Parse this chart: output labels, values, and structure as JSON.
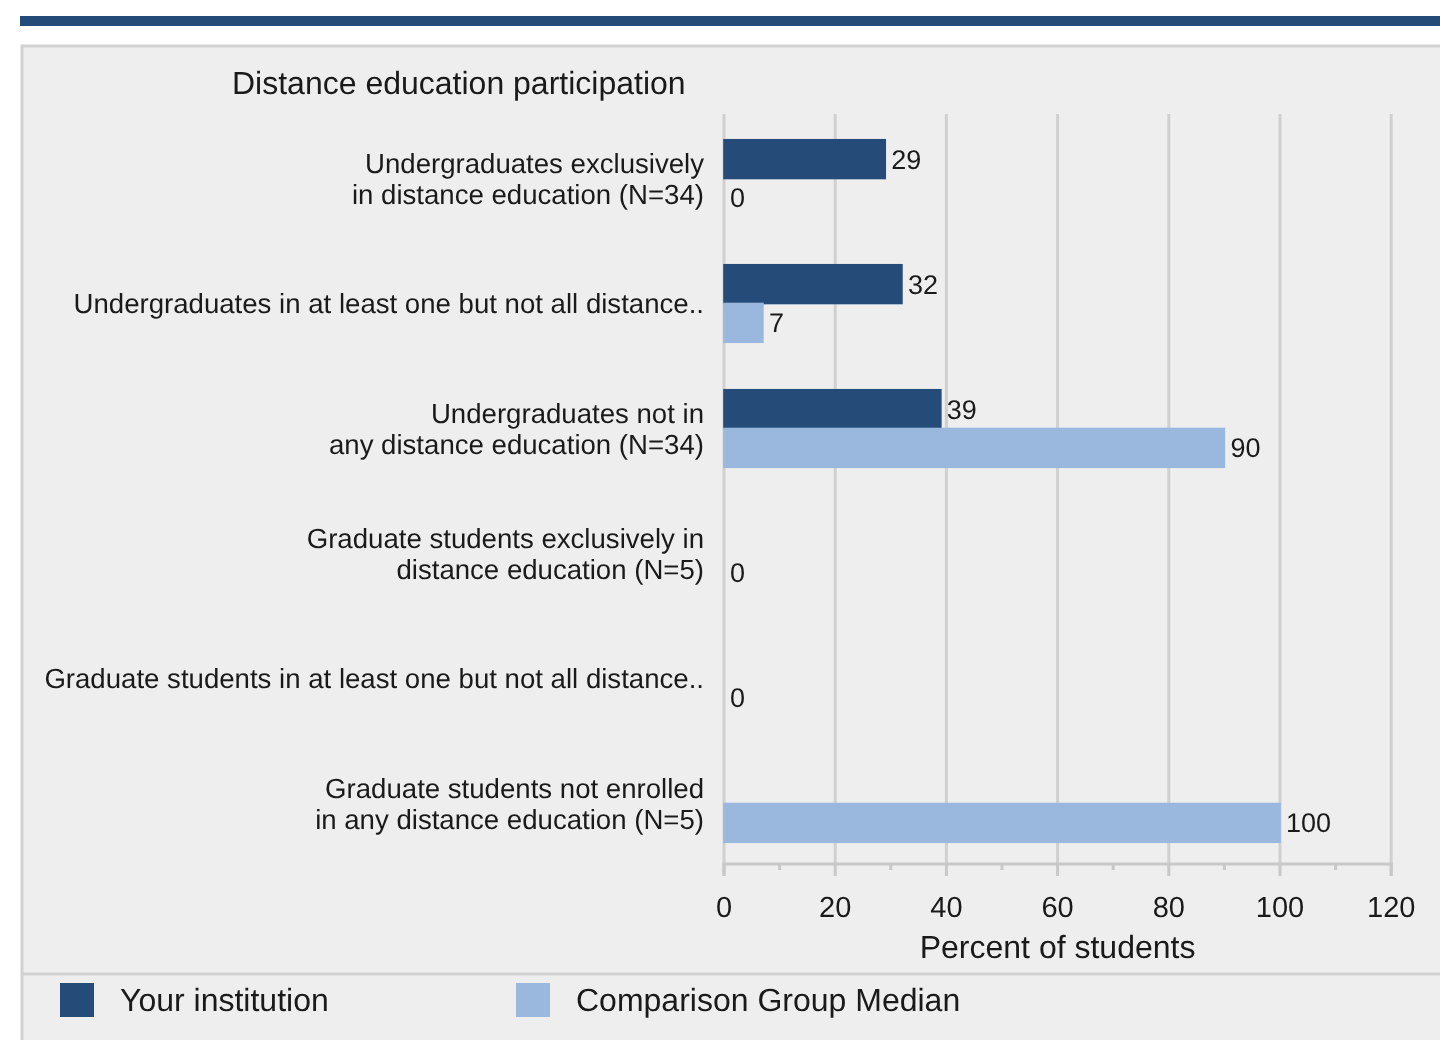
{
  "chart_data": {
    "type": "bar",
    "orientation": "horizontal",
    "title": "Distance education participation",
    "xlabel": "Percent of students",
    "categories": [
      "Undergraduates exclusively\nin distance education (N=34)",
      "Undergraduates in at least one but not all distance..",
      "Undergraduates not in\nany distance education (N=34)",
      "Graduate students exclusively in\ndistance education (N=5)",
      "Graduate students in at least one but not all distance..",
      "Graduate students not enrolled\nin any distance education (N=5)"
    ],
    "series": [
      {
        "name": "Your institution",
        "color": "#254c79",
        "values": [
          29,
          32,
          39,
          null,
          null,
          null
        ]
      },
      {
        "name": "Comparison Group Median",
        "color": "#9ab8de",
        "values": [
          0,
          7,
          90,
          0,
          0,
          100
        ]
      }
    ],
    "xlim": [
      0,
      120
    ],
    "xticks": [
      0,
      {
        "value": 10,
        "label": null
      },
      20,
      {
        "value": 30,
        "label": null
      },
      40,
      {
        "value": 50,
        "label": null
      },
      60,
      {
        "value": 70,
        "label": null
      },
      80,
      {
        "value": 90,
        "label": null
      },
      100,
      {
        "value": 110,
        "label": null
      },
      120
    ],
    "grid": "x",
    "legend": "bottom",
    "data_labels": true
  }
}
